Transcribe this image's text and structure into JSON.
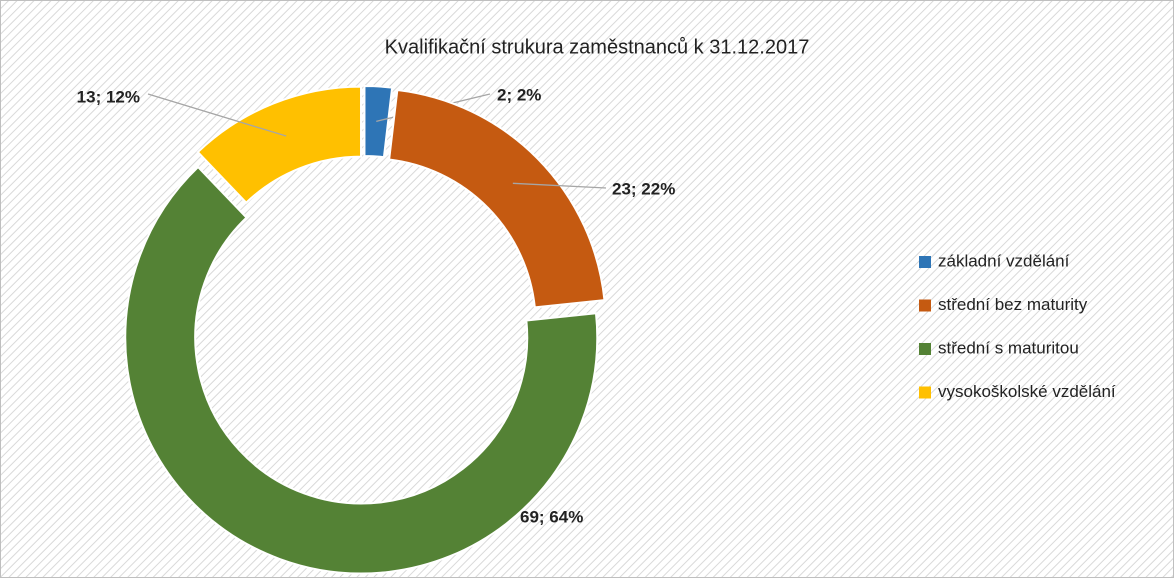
{
  "chart_data": {
    "type": "pie",
    "donut": true,
    "title": "Kvalifikační strukura zaměstnanců k 31.12.2017",
    "categories": [
      "základní vzdělání",
      "střední bez maturity",
      "střední s maturitou",
      "vysokoškolské vzdělání"
    ],
    "values": [
      2,
      23,
      69,
      13
    ],
    "value_labels": [
      "2; 2%",
      "23; 22%",
      "69; 64%",
      "13; 12%"
    ],
    "colors": [
      "#2e75b6",
      "#c55a11",
      "#548235",
      "#ffc000"
    ],
    "legend": "right"
  }
}
